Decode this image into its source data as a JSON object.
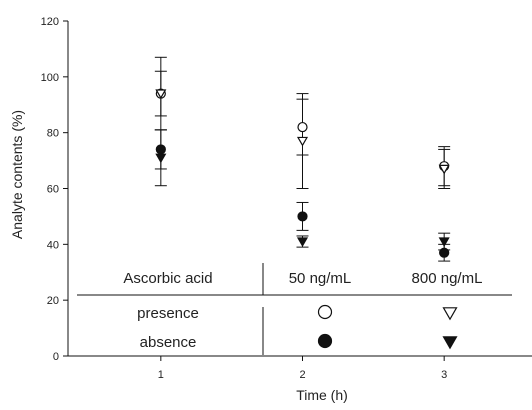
{
  "chart_data": {
    "type": "scatter",
    "xlabel": "Time (h)",
    "ylabel": "Analyte contents (%)",
    "xlim": [
      0.5,
      3.5
    ],
    "ylim": [
      0,
      120
    ],
    "x_ticks": [
      1,
      2,
      3
    ],
    "y_ticks": [
      0,
      20,
      40,
      60,
      80,
      100,
      120
    ],
    "grid": false,
    "legend": {
      "placement": "inside-bottom-table",
      "row_header": "Ascorbic acid",
      "columns": [
        "50 ng/mL",
        "800 ng/mL"
      ],
      "rows": [
        {
          "label": "presence",
          "symbols": [
            "open-circle",
            "open-triangle-down"
          ]
        },
        {
          "label": "absence",
          "symbols": [
            "filled-circle",
            "filled-triangle-down"
          ]
        }
      ]
    },
    "series": [
      {
        "symbol": "open-circle",
        "x": [
          1,
          2,
          3
        ],
        "y": [
          94,
          82,
          68
        ],
        "err": [
          13,
          10,
          7
        ]
      },
      {
        "symbol": "open-triangle-down",
        "x": [
          1,
          2,
          3
        ],
        "y": [
          94,
          77,
          67
        ],
        "err": [
          8,
          17,
          7
        ]
      },
      {
        "symbol": "filled-circle",
        "x": [
          1,
          2,
          3
        ],
        "y": [
          74,
          50,
          37
        ],
        "err": [
          7,
          5,
          3
        ]
      },
      {
        "symbol": "filled-triangle-down",
        "x": [
          1,
          2,
          3
        ],
        "y": [
          71,
          41,
          41
        ],
        "err": [
          10,
          2,
          3
        ]
      }
    ],
    "colors": {
      "ink": "#111111"
    }
  }
}
